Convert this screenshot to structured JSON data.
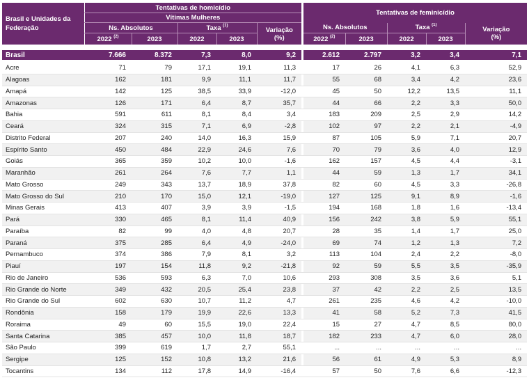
{
  "header": {
    "uf_label": "Brasil e Unidades da Federação",
    "homicide_group": "Tentativas de homicídio",
    "homicide_sub": "Vítimas Mulheres",
    "femicide_group": "Tentativas de feminicídio",
    "abs_label": "Ns. Absolutos",
    "taxa_label": "Taxa",
    "taxa_note": "(1)",
    "var_label": "Variação",
    "var_unit": "(%)",
    "y2022": "2022",
    "y2022_note": "(2)",
    "y2023": "2023"
  },
  "brasil": {
    "name": "Brasil",
    "cells": [
      "7.666",
      "8.372",
      "7,3",
      "8,0",
      "9,2",
      "2.612",
      "2.797",
      "3,2",
      "3,4",
      "7,1"
    ]
  },
  "rows": [
    {
      "name": "Acre",
      "cells": [
        "71",
        "79",
        "17,1",
        "19,1",
        "11,3",
        "17",
        "26",
        "4,1",
        "6,3",
        "52,9"
      ]
    },
    {
      "name": "Alagoas",
      "cells": [
        "162",
        "181",
        "9,9",
        "11,1",
        "11,7",
        "55",
        "68",
        "3,4",
        "4,2",
        "23,6"
      ]
    },
    {
      "name": "Amapá",
      "cells": [
        "142",
        "125",
        "38,5",
        "33,9",
        "-12,0",
        "45",
        "50",
        "12,2",
        "13,5",
        "11,1"
      ]
    },
    {
      "name": "Amazonas",
      "cells": [
        "126",
        "171",
        "6,4",
        "8,7",
        "35,7",
        "44",
        "66",
        "2,2",
        "3,3",
        "50,0"
      ]
    },
    {
      "name": "Bahia",
      "cells": [
        "591",
        "611",
        "8,1",
        "8,4",
        "3,4",
        "183",
        "209",
        "2,5",
        "2,9",
        "14,2"
      ]
    },
    {
      "name": "Ceará",
      "cells": [
        "324",
        "315",
        "7,1",
        "6,9",
        "-2,8",
        "102",
        "97",
        "2,2",
        "2,1",
        "-4,9"
      ]
    },
    {
      "name": "Distrito Federal",
      "cells": [
        "207",
        "240",
        "14,0",
        "16,3",
        "15,9",
        "87",
        "105",
        "5,9",
        "7,1",
        "20,7"
      ]
    },
    {
      "name": "Espírito Santo",
      "cells": [
        "450",
        "484",
        "22,9",
        "24,6",
        "7,6",
        "70",
        "79",
        "3,6",
        "4,0",
        "12,9"
      ]
    },
    {
      "name": "Goiás",
      "cells": [
        "365",
        "359",
        "10,2",
        "10,0",
        "-1,6",
        "162",
        "157",
        "4,5",
        "4,4",
        "-3,1"
      ]
    },
    {
      "name": "Maranhão",
      "cells": [
        "261",
        "264",
        "7,6",
        "7,7",
        "1,1",
        "44",
        "59",
        "1,3",
        "1,7",
        "34,1"
      ]
    },
    {
      "name": "Mato Grosso",
      "cells": [
        "249",
        "343",
        "13,7",
        "18,9",
        "37,8",
        "82",
        "60",
        "4,5",
        "3,3",
        "-26,8"
      ]
    },
    {
      "name": "Mato Grosso do Sul",
      "cells": [
        "210",
        "170",
        "15,0",
        "12,1",
        "-19,0",
        "127",
        "125",
        "9,1",
        "8,9",
        "-1,6"
      ]
    },
    {
      "name": "Minas Gerais",
      "cells": [
        "413",
        "407",
        "3,9",
        "3,9",
        "-1,5",
        "194",
        "168",
        "1,8",
        "1,6",
        "-13,4"
      ]
    },
    {
      "name": "Pará",
      "cells": [
        "330",
        "465",
        "8,1",
        "11,4",
        "40,9",
        "156",
        "242",
        "3,8",
        "5,9",
        "55,1"
      ]
    },
    {
      "name": "Paraíba",
      "cells": [
        "82",
        "99",
        "4,0",
        "4,8",
        "20,7",
        "28",
        "35",
        "1,4",
        "1,7",
        "25,0"
      ]
    },
    {
      "name": "Paraná",
      "cells": [
        "375",
        "285",
        "6,4",
        "4,9",
        "-24,0",
        "69",
        "74",
        "1,2",
        "1,3",
        "7,2"
      ]
    },
    {
      "name": "Pernambuco",
      "cells": [
        "374",
        "386",
        "7,9",
        "8,1",
        "3,2",
        "113",
        "104",
        "2,4",
        "2,2",
        "-8,0"
      ]
    },
    {
      "name": "Piauí",
      "cells": [
        "197",
        "154",
        "11,8",
        "9,2",
        "-21,8",
        "92",
        "59",
        "5,5",
        "3,5",
        "-35,9"
      ]
    },
    {
      "name": "Rio de Janeiro",
      "cells": [
        "536",
        "593",
        "6,3",
        "7,0",
        "10,6",
        "293",
        "308",
        "3,5",
        "3,6",
        "5,1"
      ]
    },
    {
      "name": "Rio Grande do Norte",
      "cells": [
        "349",
        "432",
        "20,5",
        "25,4",
        "23,8",
        "37",
        "42",
        "2,2",
        "2,5",
        "13,5"
      ]
    },
    {
      "name": "Rio Grande do Sul",
      "cells": [
        "602",
        "630",
        "10,7",
        "11,2",
        "4,7",
        "261",
        "235",
        "4,6",
        "4,2",
        "-10,0"
      ]
    },
    {
      "name": "Rondônia",
      "cells": [
        "158",
        "179",
        "19,9",
        "22,6",
        "13,3",
        "41",
        "58",
        "5,2",
        "7,3",
        "41,5"
      ]
    },
    {
      "name": "Roraima",
      "cells": [
        "49",
        "60",
        "15,5",
        "19,0",
        "22,4",
        "15",
        "27",
        "4,7",
        "8,5",
        "80,0"
      ]
    },
    {
      "name": "Santa Catarina",
      "cells": [
        "385",
        "457",
        "10,0",
        "11,8",
        "18,7",
        "182",
        "233",
        "4,7",
        "6,0",
        "28,0"
      ]
    },
    {
      "name": "São Paulo",
      "cells": [
        "399",
        "619",
        "1,7",
        "2,7",
        "55,1",
        "...",
        "...",
        "...",
        "...",
        "..."
      ]
    },
    {
      "name": "Sergipe",
      "cells": [
        "125",
        "152",
        "10,8",
        "13,2",
        "21,6",
        "56",
        "61",
        "4,9",
        "5,3",
        "8,9"
      ]
    },
    {
      "name": "Tocantins",
      "cells": [
        "134",
        "112",
        "17,8",
        "14,9",
        "-16,4",
        "57",
        "50",
        "7,6",
        "6,6",
        "-12,3"
      ]
    }
  ]
}
